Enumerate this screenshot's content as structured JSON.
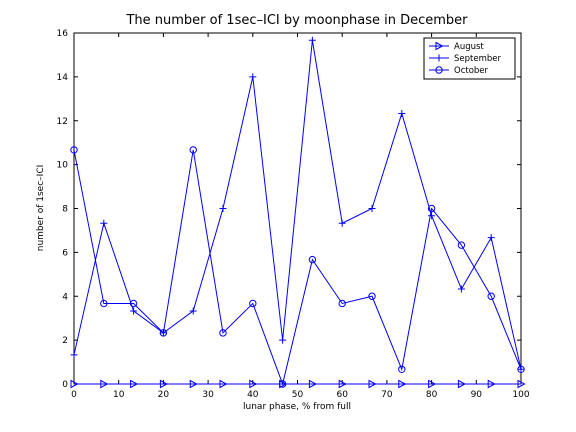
{
  "chart_data": {
    "type": "line",
    "title": "The number of 1sec–ICI by moonphase in December",
    "xlabel": "lunar phase, % from full",
    "ylabel": "number of 1sec–ICI",
    "xlim": [
      0,
      100
    ],
    "ylim": [
      0,
      16
    ],
    "xticks": [
      0,
      10,
      20,
      30,
      40,
      50,
      60,
      70,
      80,
      90,
      100
    ],
    "yticks": [
      0,
      2,
      4,
      6,
      8,
      10,
      12,
      14,
      16
    ],
    "grid": false,
    "legend_position": "top-right",
    "line_color": "#0000ff",
    "series": [
      {
        "name": "August",
        "marker": "triangle-right",
        "x": [
          0,
          6.67,
          13.33,
          20,
          26.67,
          33.33,
          40,
          46.67,
          53.33,
          60,
          66.67,
          73.33,
          80,
          86.67,
          93.33,
          100
        ],
        "values": [
          0,
          0,
          0,
          0,
          0,
          0,
          0,
          0,
          0,
          0,
          0,
          0,
          0,
          0,
          0,
          0
        ]
      },
      {
        "name": "September",
        "marker": "plus",
        "x": [
          0,
          6.67,
          13.33,
          20,
          26.67,
          33.33,
          40,
          46.67,
          53.33,
          60,
          66.67,
          73.33,
          80,
          86.67,
          93.33,
          100
        ],
        "values": [
          1.33,
          7.33,
          3.33,
          2.33,
          3.33,
          8.0,
          14.0,
          2.0,
          15.67,
          7.33,
          8.0,
          12.33,
          7.67,
          4.33,
          6.67,
          0.67
        ]
      },
      {
        "name": "October",
        "marker": "circle",
        "x": [
          0,
          6.67,
          13.33,
          20,
          26.67,
          33.33,
          40,
          46.67,
          53.33,
          60,
          66.67,
          73.33,
          80,
          86.67,
          93.33,
          100
        ],
        "values": [
          10.67,
          3.67,
          3.67,
          2.33,
          10.67,
          2.33,
          3.67,
          0,
          5.67,
          3.67,
          4.0,
          0.67,
          8.0,
          6.33,
          4.0,
          0.67
        ]
      }
    ]
  }
}
